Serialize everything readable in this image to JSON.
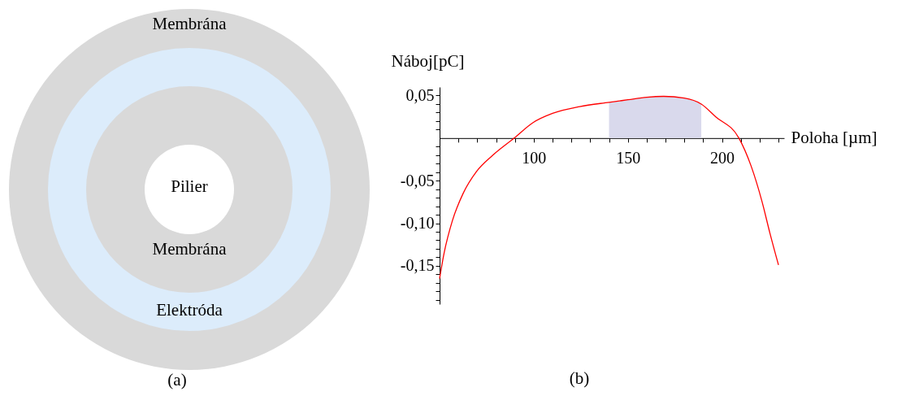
{
  "chart_data": [
    {
      "type": "other",
      "annotations": [
        "Membrána",
        "Pilier",
        "Membrána",
        "Elektróda",
        "(a)"
      ]
    },
    {
      "type": "line",
      "xlabel": "Poloha [µm]",
      "ylabel": "Náboj[pC]",
      "xlim": [
        50,
        233
      ],
      "ylim": [
        -0.195,
        0.06
      ],
      "xticks": [
        {
          "value": 60,
          "label": null
        },
        {
          "value": 70,
          "label": null
        },
        {
          "value": 80,
          "label": null
        },
        {
          "value": 90,
          "label": null
        },
        100,
        {
          "value": 110,
          "label": null
        },
        {
          "value": 120,
          "label": null
        },
        {
          "value": 130,
          "label": null
        },
        {
          "value": 140,
          "label": null
        },
        150,
        {
          "value": 160,
          "label": null
        },
        {
          "value": 170,
          "label": null
        },
        {
          "value": 180,
          "label": null
        },
        {
          "value": 190,
          "label": null
        },
        200,
        {
          "value": 210,
          "label": null
        },
        {
          "value": 220,
          "label": null
        },
        {
          "value": 230,
          "label": null
        }
      ],
      "yticks": [
        {
          "value": 0.05,
          "label": "0,05"
        },
        {
          "value": 0.04,
          "label": null
        },
        {
          "value": 0.03,
          "label": null
        },
        {
          "value": 0.02,
          "label": null
        },
        {
          "value": 0.01,
          "label": null
        },
        {
          "value": -0.01,
          "label": null
        },
        {
          "value": -0.02,
          "label": null
        },
        {
          "value": -0.03,
          "label": null
        },
        {
          "value": -0.04,
          "label": null
        },
        {
          "value": -0.05,
          "label": "-0,05"
        },
        {
          "value": -0.06,
          "label": null
        },
        {
          "value": -0.07,
          "label": null
        },
        {
          "value": -0.08,
          "label": null
        },
        {
          "value": -0.09,
          "label": null
        },
        {
          "value": -0.1,
          "label": "-0,10"
        },
        {
          "value": -0.11,
          "label": null
        },
        {
          "value": -0.12,
          "label": null
        },
        {
          "value": -0.13,
          "label": null
        },
        {
          "value": -0.14,
          "label": null
        },
        {
          "value": -0.15,
          "label": "-0,15"
        },
        {
          "value": -0.16,
          "label": null
        },
        {
          "value": -0.17,
          "label": null
        },
        {
          "value": -0.18,
          "label": null
        },
        {
          "value": -0.19,
          "label": null
        }
      ],
      "grid": false,
      "annotations": [
        "(b)"
      ],
      "series": [
        {
          "type": "area",
          "color": "#d9d9ec",
          "x": [
            140,
            150,
            160,
            169,
            180,
            189
          ],
          "values": [
            0.042,
            0.045,
            0.048,
            0.049,
            0.047,
            0.04
          ]
        },
        {
          "type": "line",
          "color": "#ff0000",
          "x": [
            50,
            52.4,
            56.8,
            62.5,
            69.7,
            78.3,
            89.6,
            99.5,
            110,
            124.4,
            140,
            150,
            160,
            169,
            180,
            189,
            196.7,
            209,
            215.5,
            221.2,
            225.5,
            230
          ],
          "values": [
            -0.165,
            -0.135,
            -0.097,
            -0.065,
            -0.039,
            -0.02,
            0,
            0.018,
            0.029,
            0.037,
            0.042,
            0.045,
            0.048,
            0.049,
            0.047,
            0.04,
            0.025,
            0,
            -0.033,
            -0.074,
            -0.112,
            -0.149
          ]
        }
      ]
    }
  ]
}
